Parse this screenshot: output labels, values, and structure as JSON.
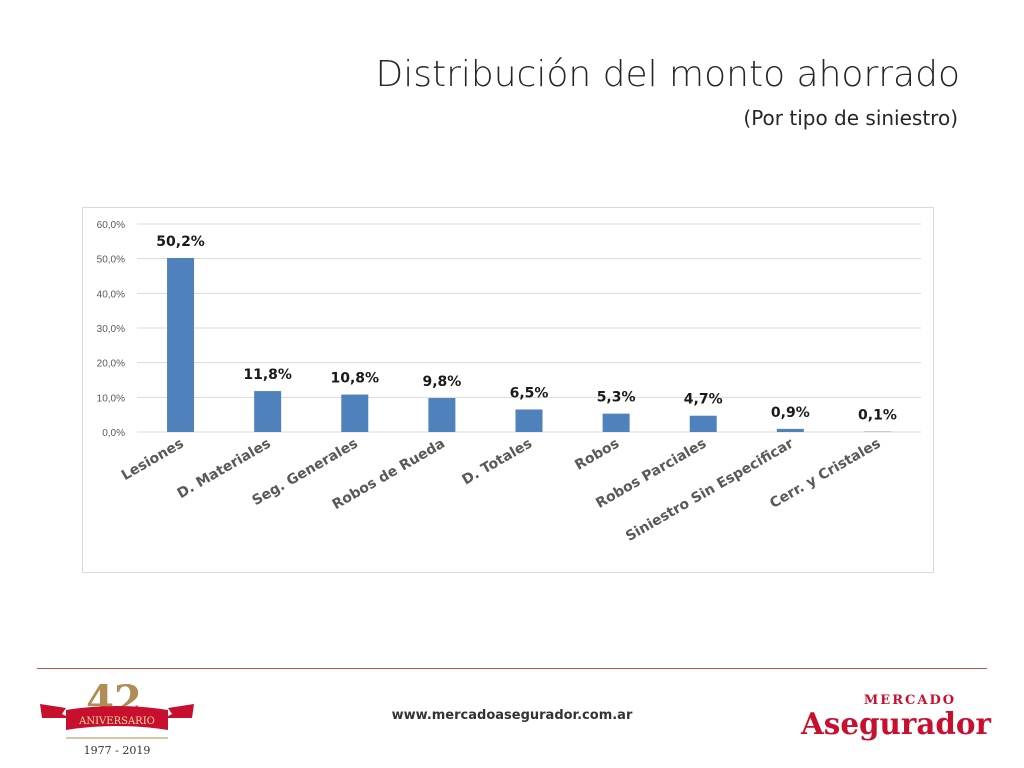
{
  "header": {
    "title": "Distribución del monto ahorrado",
    "subtitle": "(Por tipo de siniestro)"
  },
  "chart_data": {
    "type": "bar",
    "categories": [
      "Lesiones",
      "D. Materiales",
      "Seg. Generales",
      "Robos de Rueda",
      "D. Totales",
      "Robos",
      "Robos Parciales",
      "Siniestro Sin Especificar",
      "Cerr. y Cristales"
    ],
    "values": [
      50.2,
      11.8,
      10.8,
      9.8,
      6.5,
      5.3,
      4.7,
      0.9,
      0.1
    ],
    "data_labels": [
      "50,2%",
      "11,8%",
      "10,8%",
      "9,8%",
      "6,5%",
      "5,3%",
      "4,7%",
      "0,9%",
      "0,1%"
    ],
    "y_ticks": [
      0,
      10,
      20,
      30,
      40,
      50,
      60
    ],
    "y_tick_labels": [
      "0,0%",
      "10,0%",
      "20,0%",
      "30,0%",
      "40,0%",
      "50,0%",
      "60,0%"
    ],
    "ylim": [
      0,
      60
    ],
    "grid": true,
    "bar_color": "#4f81bd"
  },
  "footer": {
    "url": "www.mercadoasegurador.com.ar",
    "anniversary": {
      "number": "42",
      "ribbon_text": "ANIVERSARIO",
      "years": "1977 - 2019"
    },
    "brand": {
      "top": "MERCADO",
      "bottom": "Asegurador"
    }
  },
  "colors": {
    "accent_red": "#c0504d",
    "logo_red": "#c8102e",
    "logo_gold": "#b08d57"
  }
}
